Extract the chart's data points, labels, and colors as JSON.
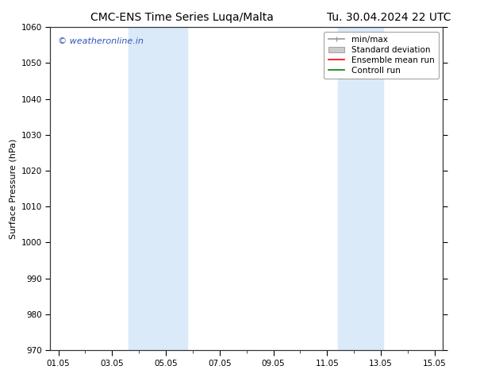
{
  "title_left": "CMC-ENS Time Series Luqa/Malta",
  "title_right": "Tu. 30.04.2024 22 UTC",
  "ylabel": "Surface Pressure (hPa)",
  "ylim": [
    970,
    1060
  ],
  "yticks": [
    970,
    980,
    990,
    1000,
    1010,
    1020,
    1030,
    1040,
    1050,
    1060
  ],
  "x_start_day": 1,
  "x_end_day": 15,
  "xtick_days": [
    1,
    3,
    5,
    7,
    9,
    11,
    13,
    15
  ],
  "xtick_labels": [
    "01.05",
    "03.05",
    "05.05",
    "07.05",
    "09.05",
    "11.05",
    "13.05",
    "15.05"
  ],
  "shaded_regions": [
    {
      "x_start": 3.6,
      "x_end": 5.8
    },
    {
      "x_start": 11.4,
      "x_end": 13.1
    }
  ],
  "shaded_color": "#daeaf8",
  "watermark_text": "© weatheronline.in",
  "watermark_color": "#3355bb",
  "legend_items": [
    {
      "label": "min/max",
      "color": "#999999",
      "lw": 1.2,
      "style": "minmax"
    },
    {
      "label": "Standard deviation",
      "color": "#cccccc",
      "lw": 5,
      "style": "band"
    },
    {
      "label": "Ensemble mean run",
      "color": "#ff0000",
      "lw": 1.2,
      "style": "line"
    },
    {
      "label": "Controll run",
      "color": "#008000",
      "lw": 1.2,
      "style": "line"
    }
  ],
  "background_color": "#ffffff",
  "grid_color": "#cccccc",
  "spine_color": "#333333",
  "title_fontsize": 10,
  "axis_fontsize": 8,
  "tick_fontsize": 7.5,
  "legend_fontsize": 7.5
}
